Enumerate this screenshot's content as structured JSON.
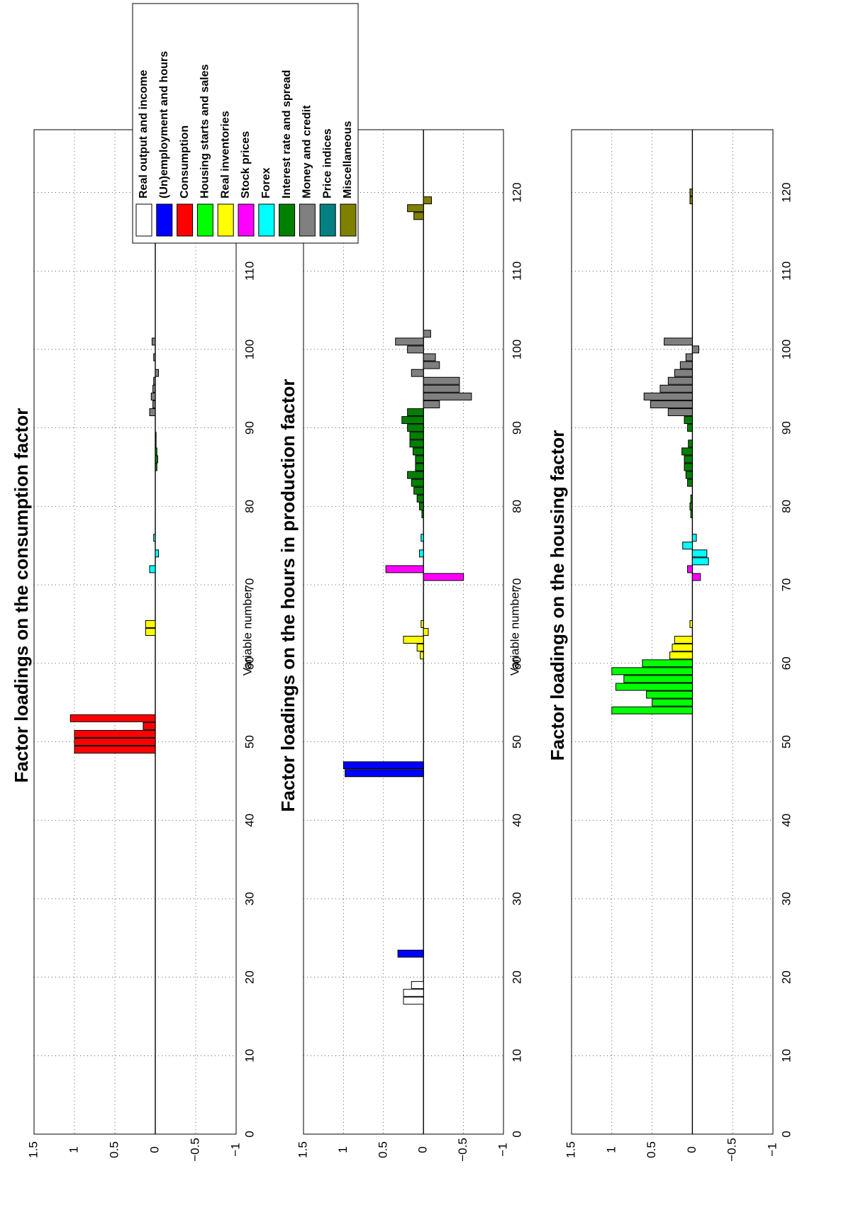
{
  "figure": {
    "xlabel": "Variable number",
    "colors": {
      "Real output and income": "#ffffff",
      "(Un)employment and hours": "#0000ff",
      "Consumption": "#ff0000",
      "Housing starts and sales": "#00ff00",
      "Real inventories": "#ffff00",
      "Stock prices": "#ff00ff",
      "Forex": "#00ffff",
      "Interest rate and spread": "#008000",
      "Money and credit": "#808080",
      "Price indices": "#008080",
      "Miscellaneous": "#808000"
    }
  },
  "legend": {
    "placement": "top-right",
    "entries": [
      "Real output and income",
      "(Un)employment and hours",
      "Consumption",
      "Housing starts and sales",
      "Real inventories",
      "Stock prices",
      "Forex",
      "Interest rate and spread",
      "Money and credit",
      "Price indices",
      "Miscellaneous"
    ]
  },
  "chart_data": [
    {
      "type": "bar",
      "orientation": "rotated-90",
      "title": "Factor loadings on the consumption factor",
      "xlabel": "Variable number",
      "ylabel": "",
      "xlim": [
        0,
        128
      ],
      "ylim": [
        -1,
        1.5
      ],
      "xticks": [
        0,
        10,
        20,
        30,
        40,
        50,
        60,
        70,
        80,
        90,
        100,
        110,
        120
      ],
      "yticks": [
        -1,
        -0.5,
        0,
        0.5,
        1,
        1.5
      ],
      "ytick_labels": [
        "−1",
        "−0.5",
        "0",
        "0.5",
        "1",
        "1.5"
      ],
      "grid": true,
      "bars": [
        {
          "x": 49,
          "value": 1.0,
          "group": "Consumption"
        },
        {
          "x": 50,
          "value": 1.0,
          "group": "Consumption"
        },
        {
          "x": 51,
          "value": 1.0,
          "group": "Consumption"
        },
        {
          "x": 52,
          "value": 0.15,
          "group": "Consumption"
        },
        {
          "x": 53,
          "value": 1.05,
          "group": "Consumption"
        },
        {
          "x": 64,
          "value": 0.12,
          "group": "Real inventories"
        },
        {
          "x": 65,
          "value": 0.12,
          "group": "Real inventories"
        },
        {
          "x": 72,
          "value": 0.07,
          "group": "Forex"
        },
        {
          "x": 74,
          "value": -0.04,
          "group": "Forex"
        },
        {
          "x": 76,
          "value": 0.02,
          "group": "Forex"
        },
        {
          "x": 85,
          "value": -0.02,
          "group": "Interest rate and spread"
        },
        {
          "x": 86,
          "value": -0.03,
          "group": "Interest rate and spread"
        },
        {
          "x": 87,
          "value": -0.02,
          "group": "Interest rate and spread"
        },
        {
          "x": 88,
          "value": -0.01,
          "group": "Interest rate and spread"
        },
        {
          "x": 89,
          "value": -0.01,
          "group": "Interest rate and spread"
        },
        {
          "x": 92,
          "value": 0.07,
          "group": "Money and credit"
        },
        {
          "x": 93,
          "value": 0.03,
          "group": "Money and credit"
        },
        {
          "x": 94,
          "value": 0.05,
          "group": "Money and credit"
        },
        {
          "x": 95,
          "value": 0.03,
          "group": "Money and credit"
        },
        {
          "x": 96,
          "value": 0.02,
          "group": "Money and credit"
        },
        {
          "x": 97,
          "value": -0.04,
          "group": "Money and credit"
        },
        {
          "x": 99,
          "value": 0.02,
          "group": "Money and credit"
        },
        {
          "x": 101,
          "value": 0.04,
          "group": "Money and credit"
        },
        {
          "x": 118,
          "value": 0.05,
          "group": "Miscellaneous"
        },
        {
          "x": 119,
          "value": -0.02,
          "group": "Miscellaneous"
        }
      ]
    },
    {
      "type": "bar",
      "orientation": "rotated-90",
      "title": "Factor loadings on the hours in production factor",
      "xlabel": "Variable number",
      "ylabel": "",
      "xlim": [
        0,
        128
      ],
      "ylim": [
        -1,
        1.5
      ],
      "xticks": [
        0,
        10,
        20,
        30,
        40,
        50,
        60,
        70,
        80,
        90,
        100,
        110,
        120
      ],
      "yticks": [
        -1,
        -0.5,
        0,
        0.5,
        1,
        1.5
      ],
      "ytick_labels": [
        "−1",
        "−0.5",
        "0",
        "0.5",
        "1",
        "1.5"
      ],
      "grid": true,
      "bars": [
        {
          "x": 17,
          "value": 0.25,
          "group": "Real output and income"
        },
        {
          "x": 18,
          "value": 0.25,
          "group": "Real output and income"
        },
        {
          "x": 19,
          "value": 0.15,
          "group": "Real output and income"
        },
        {
          "x": 23,
          "value": 0.32,
          "group": "(Un)employment and hours"
        },
        {
          "x": 46,
          "value": 0.98,
          "group": "(Un)employment and hours"
        },
        {
          "x": 47,
          "value": 1.0,
          "group": "(Un)employment and hours"
        },
        {
          "x": 61,
          "value": 0.04,
          "group": "Real inventories"
        },
        {
          "x": 62,
          "value": 0.08,
          "group": "Real inventories"
        },
        {
          "x": 63,
          "value": 0.25,
          "group": "Real inventories"
        },
        {
          "x": 64,
          "value": -0.06,
          "group": "Real inventories"
        },
        {
          "x": 65,
          "value": 0.03,
          "group": "Real inventories"
        },
        {
          "x": 71,
          "value": -0.5,
          "group": "Stock prices"
        },
        {
          "x": 72,
          "value": 0.47,
          "group": "Stock prices"
        },
        {
          "x": 74,
          "value": 0.05,
          "group": "Forex"
        },
        {
          "x": 76,
          "value": 0.03,
          "group": "Forex"
        },
        {
          "x": 79,
          "value": 0.02,
          "group": "Interest rate and spread"
        },
        {
          "x": 80,
          "value": 0.05,
          "group": "Interest rate and spread"
        },
        {
          "x": 81,
          "value": 0.08,
          "group": "Interest rate and spread"
        },
        {
          "x": 82,
          "value": 0.12,
          "group": "Interest rate and spread"
        },
        {
          "x": 83,
          "value": 0.15,
          "group": "Interest rate and spread"
        },
        {
          "x": 84,
          "value": 0.2,
          "group": "Interest rate and spread"
        },
        {
          "x": 85,
          "value": 0.1,
          "group": "Interest rate and spread"
        },
        {
          "x": 86,
          "value": 0.1,
          "group": "Interest rate and spread"
        },
        {
          "x": 87,
          "value": 0.13,
          "group": "Interest rate and spread"
        },
        {
          "x": 88,
          "value": 0.17,
          "group": "Interest rate and spread"
        },
        {
          "x": 89,
          "value": 0.17,
          "group": "Interest rate and spread"
        },
        {
          "x": 90,
          "value": 0.2,
          "group": "Interest rate and spread"
        },
        {
          "x": 91,
          "value": 0.27,
          "group": "Interest rate and spread"
        },
        {
          "x": 92,
          "value": 0.2,
          "group": "Interest rate and spread"
        },
        {
          "x": 93,
          "value": -0.2,
          "group": "Money and credit"
        },
        {
          "x": 94,
          "value": -0.6,
          "group": "Money and credit"
        },
        {
          "x": 95,
          "value": -0.45,
          "group": "Money and credit"
        },
        {
          "x": 96,
          "value": -0.45,
          "group": "Money and credit"
        },
        {
          "x": 97,
          "value": 0.15,
          "group": "Money and credit"
        },
        {
          "x": 98,
          "value": -0.2,
          "group": "Money and credit"
        },
        {
          "x": 99,
          "value": -0.15,
          "group": "Money and credit"
        },
        {
          "x": 100,
          "value": 0.2,
          "group": "Money and credit"
        },
        {
          "x": 101,
          "value": 0.35,
          "group": "Money and credit"
        },
        {
          "x": 102,
          "value": -0.09,
          "group": "Money and credit"
        },
        {
          "x": 117,
          "value": 0.12,
          "group": "Miscellaneous"
        },
        {
          "x": 118,
          "value": 0.2,
          "group": "Miscellaneous"
        },
        {
          "x": 119,
          "value": -0.1,
          "group": "Miscellaneous"
        }
      ]
    },
    {
      "type": "bar",
      "orientation": "rotated-90",
      "title": "Factor loadings on the housing factor",
      "xlabel": "",
      "ylabel": "",
      "xlim": [
        0,
        128
      ],
      "ylim": [
        -1,
        1.5
      ],
      "xticks": [
        0,
        10,
        20,
        30,
        40,
        50,
        60,
        70,
        80,
        90,
        100,
        110,
        120
      ],
      "yticks": [
        -1,
        -0.5,
        0,
        0.5,
        1,
        1.5
      ],
      "ytick_labels": [
        "−1",
        "−0.5",
        "0",
        "0.5",
        "1",
        "1.5"
      ],
      "grid": true,
      "bars": [
        {
          "x": 54,
          "value": 1.0,
          "group": "Housing starts and sales"
        },
        {
          "x": 55,
          "value": 0.5,
          "group": "Housing starts and sales"
        },
        {
          "x": 56,
          "value": 0.57,
          "group": "Housing starts and sales"
        },
        {
          "x": 57,
          "value": 0.95,
          "group": "Housing starts and sales"
        },
        {
          "x": 58,
          "value": 0.85,
          "group": "Housing starts and sales"
        },
        {
          "x": 59,
          "value": 1.0,
          "group": "Housing starts and sales"
        },
        {
          "x": 60,
          "value": 0.62,
          "group": "Housing starts and sales"
        },
        {
          "x": 61,
          "value": 0.28,
          "group": "Real inventories"
        },
        {
          "x": 62,
          "value": 0.25,
          "group": "Real inventories"
        },
        {
          "x": 63,
          "value": 0.22,
          "group": "Real inventories"
        },
        {
          "x": 65,
          "value": 0.03,
          "group": "Real inventories"
        },
        {
          "x": 71,
          "value": -0.1,
          "group": "Stock prices"
        },
        {
          "x": 72,
          "value": 0.06,
          "group": "Stock prices"
        },
        {
          "x": 73,
          "value": -0.2,
          "group": "Forex"
        },
        {
          "x": 74,
          "value": -0.18,
          "group": "Forex"
        },
        {
          "x": 75,
          "value": 0.12,
          "group": "Forex"
        },
        {
          "x": 76,
          "value": -0.05,
          "group": "Forex"
        },
        {
          "x": 79,
          "value": 0.02,
          "group": "Interest rate and spread"
        },
        {
          "x": 80,
          "value": 0.03,
          "group": "Interest rate and spread"
        },
        {
          "x": 81,
          "value": 0.02,
          "group": "Interest rate and spread"
        },
        {
          "x": 83,
          "value": 0.06,
          "group": "Interest rate and spread"
        },
        {
          "x": 84,
          "value": 0.08,
          "group": "Interest rate and spread"
        },
        {
          "x": 85,
          "value": 0.1,
          "group": "Interest rate and spread"
        },
        {
          "x": 86,
          "value": 0.1,
          "group": "Interest rate and spread"
        },
        {
          "x": 87,
          "value": 0.13,
          "group": "Interest rate and spread"
        },
        {
          "x": 88,
          "value": 0.05,
          "group": "Interest rate and spread"
        },
        {
          "x": 90,
          "value": 0.06,
          "group": "Interest rate and spread"
        },
        {
          "x": 91,
          "value": 0.1,
          "group": "Interest rate and spread"
        },
        {
          "x": 92,
          "value": 0.3,
          "group": "Money and credit"
        },
        {
          "x": 93,
          "value": 0.52,
          "group": "Money and credit"
        },
        {
          "x": 94,
          "value": 0.6,
          "group": "Money and credit"
        },
        {
          "x": 95,
          "value": 0.4,
          "group": "Money and credit"
        },
        {
          "x": 96,
          "value": 0.3,
          "group": "Money and credit"
        },
        {
          "x": 97,
          "value": 0.22,
          "group": "Money and credit"
        },
        {
          "x": 98,
          "value": 0.15,
          "group": "Money and credit"
        },
        {
          "x": 99,
          "value": 0.08,
          "group": "Money and credit"
        },
        {
          "x": 100,
          "value": -0.08,
          "group": "Money and credit"
        },
        {
          "x": 101,
          "value": 0.35,
          "group": "Money and credit"
        },
        {
          "x": 119,
          "value": 0.03,
          "group": "Miscellaneous"
        },
        {
          "x": 120,
          "value": 0.03,
          "group": "Miscellaneous"
        }
      ]
    }
  ]
}
